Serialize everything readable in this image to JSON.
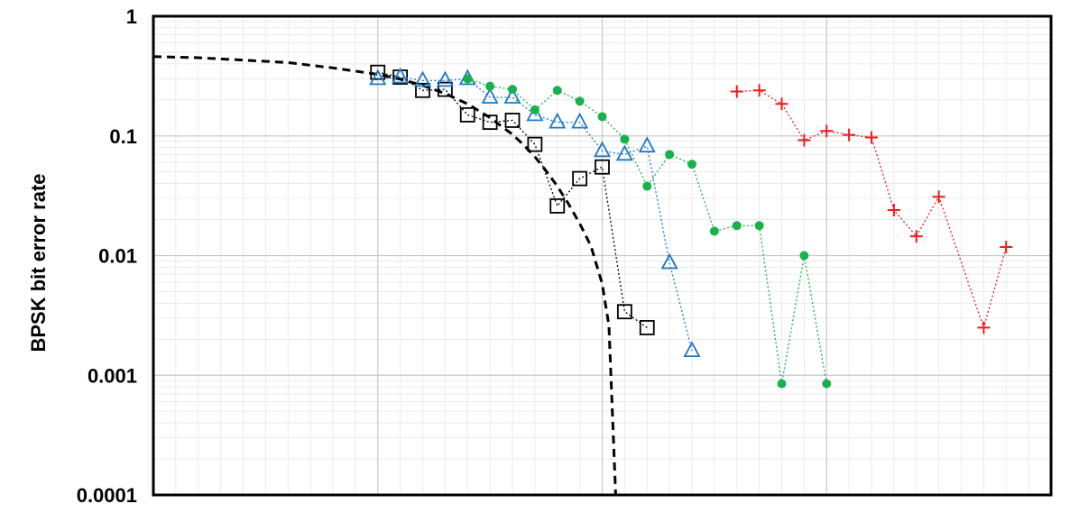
{
  "chart_data": {
    "type": "scatter",
    "title": "",
    "xlabel": "",
    "ylabel": "BPSK bit error rate",
    "x_scale": "linear",
    "y_scale": "log",
    "xlim": [
      -10,
      30
    ],
    "ylim": [
      0.0001,
      1
    ],
    "y_ticks": [
      {
        "value": 1,
        "label": "1"
      },
      {
        "value": 0.1,
        "label": "0.1"
      },
      {
        "value": 0.01,
        "label": "0.01"
      },
      {
        "value": 0.001,
        "label": "0.001"
      },
      {
        "value": 0.0001,
        "label": "0.0001"
      }
    ],
    "grid": true,
    "legend": "none",
    "series": [
      {
        "color": "#000000",
        "line": "dashed",
        "marker": "none",
        "x": [
          -10,
          -8,
          -6,
          -4,
          -2,
          0,
          1,
          2,
          3,
          4,
          5,
          6,
          6.5,
          7,
          7.5,
          8,
          8.5,
          9,
          9.5,
          10,
          10.3,
          10.6
        ],
        "y": [
          0.46,
          0.45,
          0.43,
          0.41,
          0.37,
          0.327,
          0.298,
          0.264,
          0.226,
          0.185,
          0.142,
          0.103,
          0.084,
          0.067,
          0.051,
          0.038,
          0.027,
          0.0185,
          0.012,
          0.0058,
          0.0026,
          0.0001
        ]
      },
      {
        "color": "#000000",
        "line": "dotted",
        "marker": "open-square",
        "x": [
          0,
          1,
          2,
          3,
          4,
          5,
          6,
          7,
          8,
          9,
          10,
          11,
          12
        ],
        "y": [
          0.34,
          0.31,
          0.24,
          0.245,
          0.15,
          0.13,
          0.135,
          0.085,
          0.026,
          0.044,
          0.055,
          0.0034,
          0.0025
        ]
      },
      {
        "color": "#1f77c8",
        "line": "dotted",
        "marker": "open-triangle",
        "x": [
          0,
          1,
          2,
          3,
          4,
          5,
          6,
          7,
          8,
          9,
          10,
          11,
          12,
          13,
          14
        ],
        "y": [
          0.3,
          0.31,
          0.29,
          0.29,
          0.3,
          0.21,
          0.21,
          0.15,
          0.13,
          0.13,
          0.075,
          0.07,
          0.082,
          0.0087,
          0.0016
        ]
      },
      {
        "color": "#18b24a",
        "line": "dotted",
        "marker": "filled-circle",
        "x": [
          4,
          5,
          6,
          7,
          8,
          9,
          10,
          11,
          12,
          13,
          14,
          15,
          16,
          17,
          18,
          19,
          20
        ],
        "y": [
          0.3,
          0.26,
          0.245,
          0.165,
          0.24,
          0.195,
          0.145,
          0.094,
          0.038,
          0.07,
          0.058,
          0.016,
          0.0178,
          0.0178,
          0.00085,
          0.01,
          0.00085
        ]
      },
      {
        "color": "#ee1c1c",
        "line": "dotted",
        "marker": "plus",
        "x": [
          16,
          17,
          18,
          19,
          20,
          21,
          22,
          23,
          24,
          25,
          26,
          27,
          28
        ],
        "y": [
          0.235,
          0.24,
          0.185,
          0.092,
          0.11,
          0.102,
          0.097,
          0.024,
          0.0145,
          0.031,
          null,
          0.0025,
          0.0118
        ]
      }
    ]
  }
}
